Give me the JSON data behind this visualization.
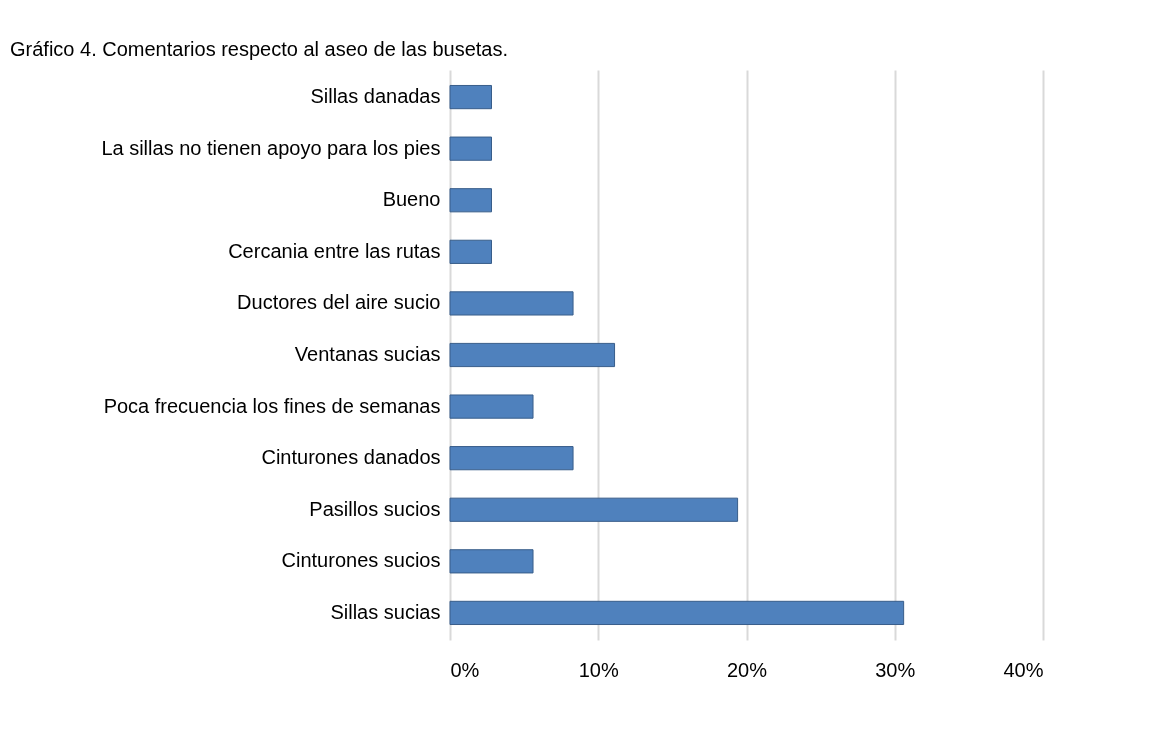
{
  "chart_data": {
    "type": "bar",
    "orientation": "horizontal",
    "title": "Gráfico 4. Comentarios respecto al aseo de las busetas.",
    "categories": [
      "Sillas danadas",
      "La sillas no tienen apoyo para los pies",
      "Bueno",
      "Cercania entre las rutas",
      "Ductores del aire sucio",
      "Ventanas sucias",
      "Poca frecuencia los fines de semanas",
      "Cinturones danados",
      "Pasillos sucios",
      "Cinturones sucios",
      "Sillas sucias"
    ],
    "values": [
      2.8,
      2.8,
      2.8,
      2.8,
      8.3,
      11.1,
      5.6,
      8.3,
      19.4,
      5.6,
      30.6
    ],
    "color": "#4f81bd",
    "xlim": [
      0,
      40
    ],
    "xticks": [
      {
        "value": 0,
        "label": "0%"
      },
      {
        "value": 10,
        "label": "10%"
      },
      {
        "value": 20,
        "label": "20%"
      },
      {
        "value": 30,
        "label": "30%"
      },
      {
        "value": 40,
        "label": "40%"
      }
    ],
    "grid": "x"
  }
}
